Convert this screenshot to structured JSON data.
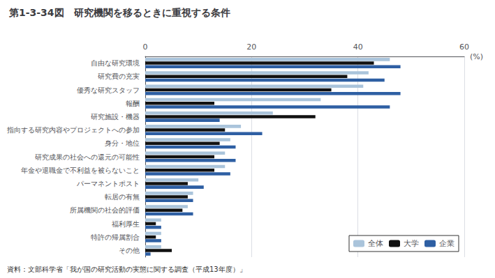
{
  "chart_data": {
    "type": "bar",
    "orientation": "horizontal",
    "title": "第1-3-34図　研究機関を移るときに重視する条件",
    "xlabel": "(%)",
    "annotations": [
      "資料：文部科学省「我が国の研究活動の実態に関する調査（平成13年度）」"
    ],
    "categories": [
      "自由な研究環境",
      "研究費の充実",
      "優秀な研究スタッフ",
      "報酬",
      "研究施設・機器",
      "指向する研究内容やプロジェクトへの参加",
      "身分・地位",
      "研究成果の社会への還元の可能性",
      "年金や退職金で不利益を被らないこと",
      "パーマネントポスト",
      "転居の有無",
      "所属機関の社会的評価",
      "福利厚生",
      "特許の帰属割合",
      "その他"
    ],
    "series": [
      {
        "name": "全体",
        "color": "#aac4db",
        "values": [
          46,
          42,
          41,
          33,
          24,
          18,
          16,
          15,
          15,
          10,
          9,
          8,
          3,
          3,
          3
        ]
      },
      {
        "name": "大学",
        "color": "#111111",
        "values": [
          43,
          38,
          35,
          13,
          32,
          15,
          14,
          13,
          13,
          8,
          8,
          7,
          2,
          2,
          5
        ]
      },
      {
        "name": "企業",
        "color": "#2e5fa3",
        "values": [
          48,
          45,
          48,
          46,
          14,
          22,
          17,
          17,
          16,
          11,
          9,
          9,
          3,
          3,
          1
        ]
      }
    ],
    "xlim": [
      0,
      60
    ],
    "xticks": [
      0,
      20,
      40,
      60
    ],
    "grid": true,
    "legend": "lower right"
  }
}
